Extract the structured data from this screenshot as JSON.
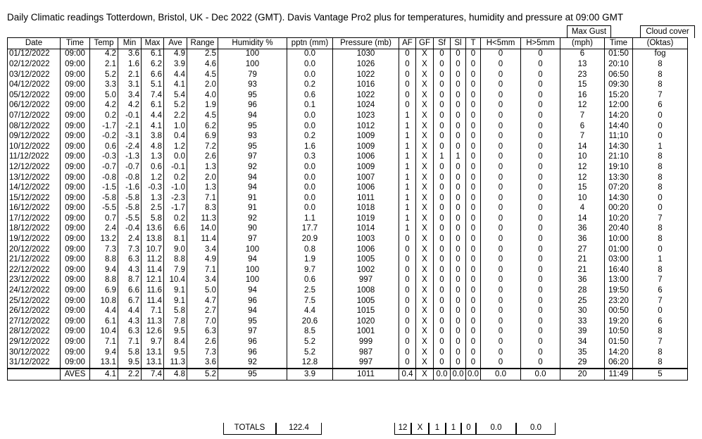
{
  "title": "Daily Climatic readings Totterdown, Bristol, UK - Dec 2022 (GMT). Davis Vantage Pro2 plus for temperatures, humidity and pressure at 09:00 GMT",
  "group_headers": {
    "max_gust": "Max Gust",
    "cloud_cover": "Cloud cover"
  },
  "columns": [
    "Date",
    "Time",
    "Temp",
    "Min",
    "Max",
    "Ave",
    "Range",
    "Humidity %",
    "pptn (mm)",
    "Pressure (mb)",
    "AF",
    "GF",
    "Sf",
    "Sl",
    "T",
    "H<5mm",
    "H>5mm",
    "(mph)",
    "Time",
    "(Oktas)"
  ],
  "rows": [
    [
      "01/12/2022",
      "09:00",
      "4.2",
      "3.6",
      "6.1",
      "4.9",
      "2.5",
      "100",
      "0.0",
      "1030",
      "0",
      "X",
      "0",
      "0",
      "0",
      "0",
      "0",
      "6",
      "01:50",
      "fog"
    ],
    [
      "02/12/2022",
      "09:00",
      "2.1",
      "1.6",
      "6.2",
      "3.9",
      "4.6",
      "100",
      "0.0",
      "1026",
      "0",
      "X",
      "0",
      "0",
      "0",
      "0",
      "0",
      "13",
      "20:10",
      "8"
    ],
    [
      "03/12/2022",
      "09:00",
      "5.2",
      "2.1",
      "6.6",
      "4.4",
      "4.5",
      "79",
      "0.0",
      "1022",
      "0",
      "X",
      "0",
      "0",
      "0",
      "0",
      "0",
      "23",
      "06:50",
      "8"
    ],
    [
      "04/12/2022",
      "09:00",
      "3.3",
      "3.1",
      "5.1",
      "4.1",
      "2.0",
      "93",
      "0.2",
      "1016",
      "0",
      "X",
      "0",
      "0",
      "0",
      "0",
      "0",
      "15",
      "09:30",
      "8"
    ],
    [
      "05/12/2022",
      "09:00",
      "5.0",
      "3.4",
      "7.4",
      "5.4",
      "4.0",
      "95",
      "0.6",
      "1022",
      "0",
      "X",
      "0",
      "0",
      "0",
      "0",
      "0",
      "16",
      "15:20",
      "7"
    ],
    [
      "06/12/2022",
      "09:00",
      "4.2",
      "4.2",
      "6.1",
      "5.2",
      "1.9",
      "96",
      "0.1",
      "1024",
      "0",
      "X",
      "0",
      "0",
      "0",
      "0",
      "0",
      "12",
      "12:00",
      "6"
    ],
    [
      "07/12/2022",
      "09:00",
      "0.2",
      "-0.1",
      "4.4",
      "2.2",
      "4.5",
      "94",
      "0.0",
      "1023",
      "1",
      "X",
      "0",
      "0",
      "0",
      "0",
      "0",
      "7",
      "14:20",
      "0"
    ],
    [
      "08/12/2022",
      "09:00",
      "-1.7",
      "-2.1",
      "4.1",
      "1.0",
      "6.2",
      "95",
      "0.0",
      "1012",
      "1",
      "X",
      "0",
      "0",
      "0",
      "0",
      "0",
      "6",
      "14:40",
      "0"
    ],
    [
      "09/12/2022",
      "09:00",
      "-0.2",
      "-3.1",
      "3.8",
      "0.4",
      "6.9",
      "93",
      "0.2",
      "1009",
      "1",
      "X",
      "0",
      "0",
      "0",
      "0",
      "0",
      "7",
      "11;10",
      "0"
    ],
    [
      "10/12/2022",
      "09:00",
      "0.6",
      "-2.4",
      "4.8",
      "1.2",
      "7.2",
      "95",
      "1.6",
      "1009",
      "1",
      "X",
      "0",
      "0",
      "0",
      "0",
      "0",
      "14",
      "14:30",
      "1"
    ],
    [
      "11/12/2022",
      "09:00",
      "-0.3",
      "-1.3",
      "1.3",
      "0.0",
      "2.6",
      "97",
      "0.3",
      "1006",
      "1",
      "X",
      "1",
      "1",
      "0",
      "0",
      "0",
      "10",
      "21:10",
      "8"
    ],
    [
      "12/12/2022",
      "09:00",
      "-0.7",
      "-0.7",
      "0.6",
      "-0.1",
      "1.3",
      "92",
      "0.0",
      "1009",
      "1",
      "X",
      "0",
      "0",
      "0",
      "0",
      "0",
      "12",
      "19:10",
      "8"
    ],
    [
      "13/12/2022",
      "09:00",
      "-0.8",
      "-0.8",
      "1.2",
      "0.2",
      "2.0",
      "94",
      "0.0",
      "1007",
      "1",
      "X",
      "0",
      "0",
      "0",
      "0",
      "0",
      "12",
      "13:30",
      "8"
    ],
    [
      "14/12/2022",
      "09:00",
      "-1.5",
      "-1.6",
      "-0.3",
      "-1.0",
      "1.3",
      "94",
      "0.0",
      "1006",
      "1",
      "X",
      "0",
      "0",
      "0",
      "0",
      "0",
      "15",
      "07:20",
      "8"
    ],
    [
      "15/12/2022",
      "09:00",
      "-5.8",
      "-5.8",
      "1.3",
      "-2.3",
      "7.1",
      "91",
      "0.0",
      "1011",
      "1",
      "X",
      "0",
      "0",
      "0",
      "0",
      "0",
      "10",
      "14:30",
      "0"
    ],
    [
      "16/12/2022",
      "09:00",
      "-5.5",
      "-5.8",
      "2.5",
      "-1.7",
      "8.3",
      "91",
      "0.0",
      "1018",
      "1",
      "X",
      "0",
      "0",
      "0",
      "0",
      "0",
      "4",
      "00:20",
      "0"
    ],
    [
      "17/12/2022",
      "09:00",
      "0.7",
      "-5.5",
      "5.8",
      "0.2",
      "11.3",
      "92",
      "1.1",
      "1019",
      "1",
      "X",
      "0",
      "0",
      "0",
      "0",
      "0",
      "14",
      "10:20",
      "7"
    ],
    [
      "18/12/2022",
      "09:00",
      "2.4",
      "-0.4",
      "13.6",
      "6.6",
      "14.0",
      "90",
      "17.7",
      "1014",
      "1",
      "X",
      "0",
      "0",
      "0",
      "0",
      "0",
      "36",
      "20:40",
      "8"
    ],
    [
      "19/12/2022",
      "09:00",
      "13.2",
      "2.4",
      "13.8",
      "8.1",
      "11.4",
      "97",
      "20.9",
      "1003",
      "0",
      "X",
      "0",
      "0",
      "0",
      "0",
      "0",
      "36",
      "10:00",
      "8"
    ],
    [
      "20/12/2022",
      "09:00",
      "7.3",
      "7.3",
      "10.7",
      "9.0",
      "3.4",
      "100",
      "0.8",
      "1006",
      "0",
      "X",
      "0",
      "0",
      "0",
      "0",
      "0",
      "27",
      "01:00",
      "0"
    ],
    [
      "21/12/2022",
      "09:00",
      "8.8",
      "6.3",
      "11.2",
      "8.8",
      "4.9",
      "94",
      "1.9",
      "1005",
      "0",
      "X",
      "0",
      "0",
      "0",
      "0",
      "0",
      "21",
      "03:00",
      "1"
    ],
    [
      "22/12/2022",
      "09:00",
      "9.4",
      "4.3",
      "11.4",
      "7.9",
      "7.1",
      "100",
      "9.7",
      "1002",
      "0",
      "X",
      "0",
      "0",
      "0",
      "0",
      "0",
      "21",
      "16:40",
      "8"
    ],
    [
      "23/12/2022",
      "09:00",
      "8.8",
      "8.7",
      "12.1",
      "10.4",
      "3.4",
      "100",
      "0.6",
      "997",
      "0",
      "X",
      "0",
      "0",
      "0",
      "0",
      "0",
      "36",
      "13:00",
      "7"
    ],
    [
      "24/12/2022",
      "09:00",
      "6.9",
      "6.6",
      "11.6",
      "9.1",
      "5.0",
      "94",
      "2.5",
      "1008",
      "0",
      "X",
      "0",
      "0",
      "0",
      "0",
      "0",
      "28",
      "19:50",
      "6"
    ],
    [
      "25/12/2022",
      "09:00",
      "10.8",
      "6.7",
      "11.4",
      "9.1",
      "4.7",
      "96",
      "7.5",
      "1005",
      "0",
      "X",
      "0",
      "0",
      "0",
      "0",
      "0",
      "25",
      "23:20",
      "7"
    ],
    [
      "26/12/2022",
      "09:00",
      "4.4",
      "4.4",
      "7.1",
      "5.8",
      "2.7",
      "94",
      "4.4",
      "1015",
      "0",
      "X",
      "0",
      "0",
      "0",
      "0",
      "0",
      "30",
      "00:50",
      "0"
    ],
    [
      "27/12/2022",
      "09:00",
      "6.1",
      "4.3",
      "11.3",
      "7.8",
      "7.0",
      "95",
      "20.6",
      "1020",
      "0",
      "X",
      "0",
      "0",
      "0",
      "0",
      "0",
      "33",
      "19:20",
      "6"
    ],
    [
      "28/12/2022",
      "09:00",
      "10.4",
      "6.3",
      "12.6",
      "9.5",
      "6.3",
      "97",
      "8.5",
      "1001",
      "0",
      "X",
      "0",
      "0",
      "0",
      "0",
      "0",
      "39",
      "10:50",
      "8"
    ],
    [
      "29/12/2022",
      "09:00",
      "7.1",
      "7.1",
      "9.7",
      "8.4",
      "2.6",
      "96",
      "5.2",
      "999",
      "0",
      "X",
      "0",
      "0",
      "0",
      "0",
      "0",
      "34",
      "01:50",
      "7"
    ],
    [
      "30/12/2022",
      "09:00",
      "9.4",
      "5.8",
      "13.1",
      "9.5",
      "7.3",
      "96",
      "5.2",
      "987",
      "0",
      "X",
      "0",
      "0",
      "0",
      "0",
      "0",
      "35",
      "14:20",
      "8"
    ],
    [
      "31/12/2022",
      "09:00",
      "13.1",
      "9.5",
      "13.1",
      "11.3",
      "3.6",
      "92",
      "12.8",
      "997",
      "0",
      "X",
      "0",
      "0",
      "0",
      "0",
      "0",
      "29",
      "06:20",
      "8"
    ]
  ],
  "aves": [
    "",
    "AVES",
    "4.1",
    "2.2",
    "7.4",
    "4.8",
    "5.2",
    "95",
    "3.9",
    "1011",
    "0.4",
    "X",
    "0.0",
    "0.0",
    "0.0",
    "0.0",
    "0.0",
    "20",
    "11:49",
    "5"
  ],
  "totals": {
    "label": "TOTALS",
    "pptn": "122.4",
    "af": "12",
    "gf": "X",
    "sf": "1",
    "sl": "1",
    "t": "0",
    "h_lt5": "0.0",
    "h_gt5": "0.0"
  }
}
